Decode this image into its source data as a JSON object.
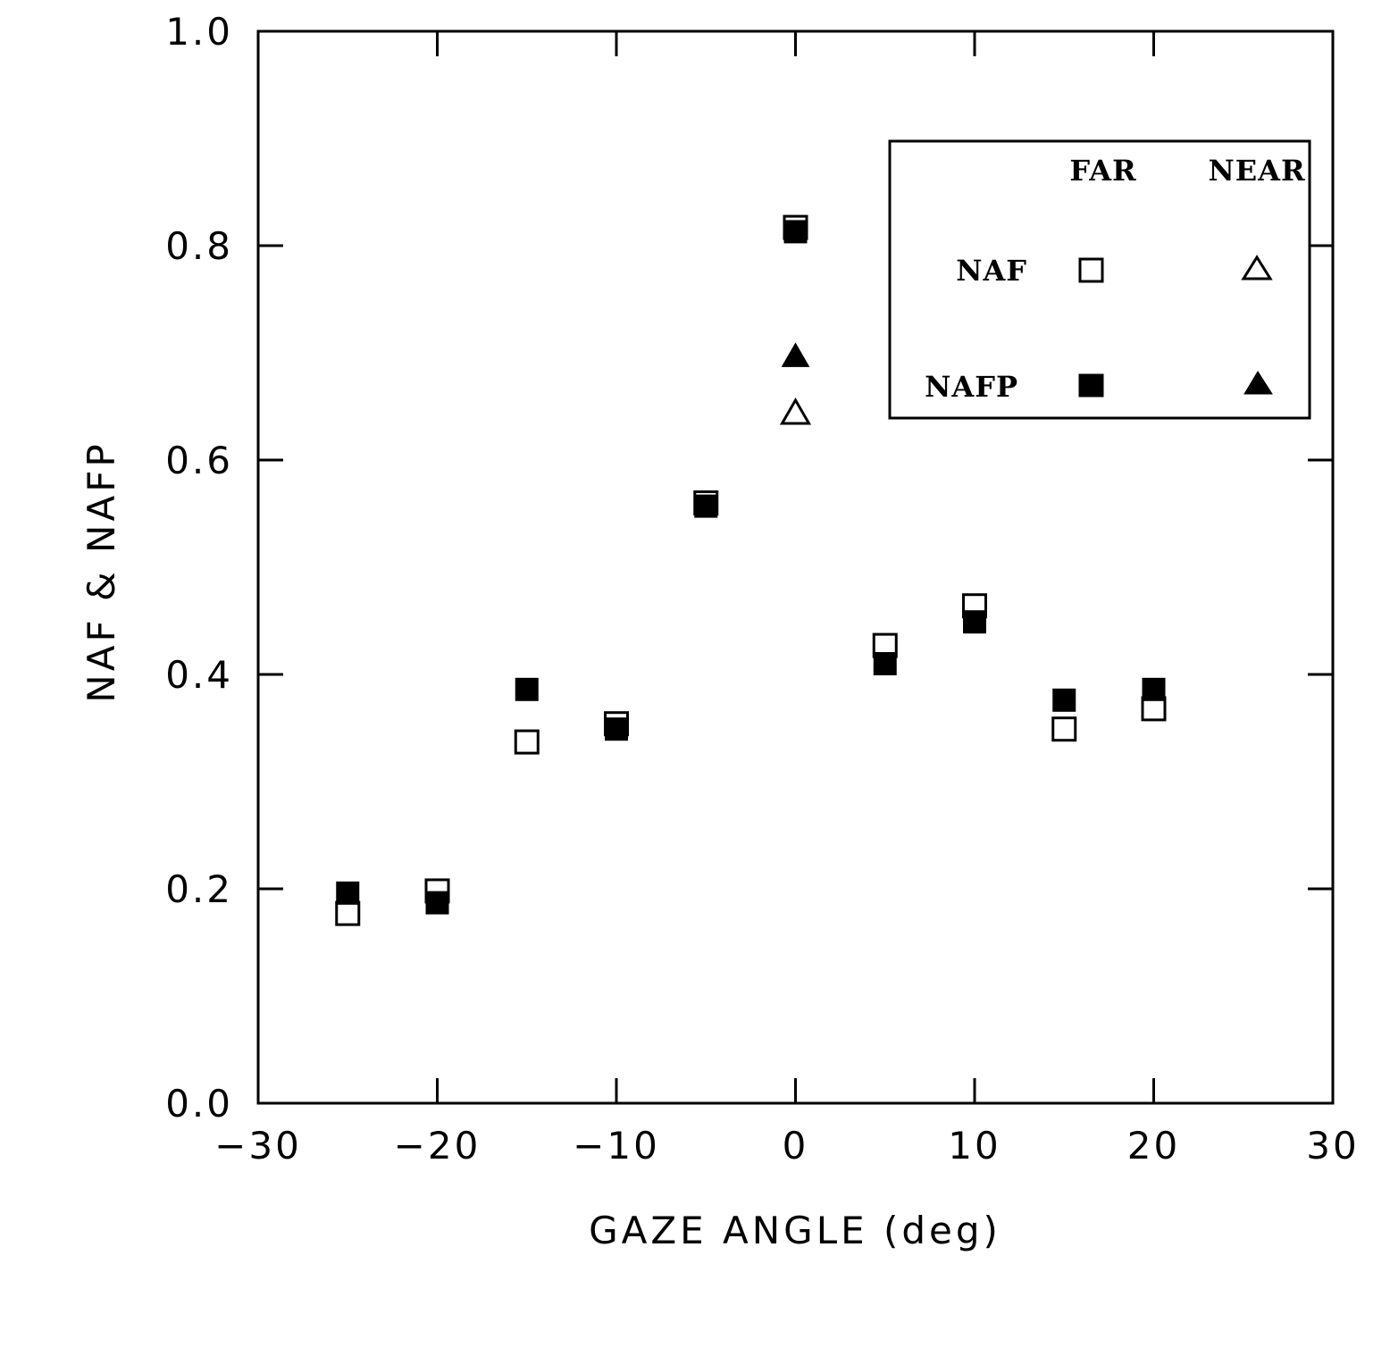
{
  "chart_data": {
    "type": "scatter",
    "title": "",
    "xlabel": "GAZE ANGLE (deg)",
    "ylabel": "NAF & NAFP",
    "xlim": [
      -30,
      30
    ],
    "ylim": [
      0.0,
      1.0
    ],
    "xticks": [
      "-30",
      "-20",
      "-10",
      "0",
      "10",
      "20",
      "30"
    ],
    "xtick_values": [
      -30,
      -20,
      -10,
      0,
      10,
      20,
      30
    ],
    "yticks": [
      "0.0",
      "0.2",
      "0.4",
      "0.6",
      "0.8",
      "1.0"
    ],
    "ytick_values": [
      0.0,
      0.2,
      0.4,
      0.6,
      0.8,
      1.0
    ],
    "grid": false,
    "legend": {
      "placement": "top-right",
      "column_headers": [
        "FAR",
        "NEAR"
      ],
      "row_labels": [
        "NAF",
        "NAFP"
      ]
    },
    "series": [
      {
        "name": "NAF FAR",
        "marker": "square",
        "filled": false,
        "x": [
          -25,
          -20,
          -15,
          -10,
          -5,
          0,
          5,
          10,
          15,
          20
        ],
        "y": [
          0.177,
          0.198,
          0.337,
          0.354,
          0.56,
          0.817,
          0.427,
          0.464,
          0.349,
          0.368
        ]
      },
      {
        "name": "NAFP FAR",
        "marker": "square",
        "filled": true,
        "x": [
          -25,
          -20,
          -15,
          -10,
          -5,
          0,
          5,
          10,
          15,
          20
        ],
        "y": [
          0.196,
          0.187,
          0.386,
          0.349,
          0.557,
          0.813,
          0.41,
          0.449,
          0.376,
          0.386
        ]
      },
      {
        "name": "NAF NEAR",
        "marker": "triangle",
        "filled": false,
        "x": [
          0
        ],
        "y": [
          0.645
        ]
      },
      {
        "name": "NAFP NEAR",
        "marker": "triangle",
        "filled": true,
        "x": [
          0
        ],
        "y": [
          0.698
        ]
      }
    ]
  }
}
